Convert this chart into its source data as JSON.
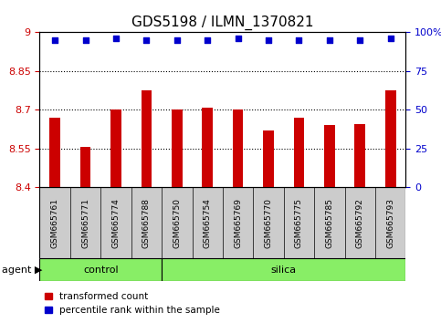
{
  "title": "GDS5198 / ILMN_1370821",
  "samples": [
    "GSM665761",
    "GSM665771",
    "GSM665774",
    "GSM665788",
    "GSM665750",
    "GSM665754",
    "GSM665769",
    "GSM665770",
    "GSM665775",
    "GSM665785",
    "GSM665792",
    "GSM665793"
  ],
  "transformed_count": [
    8.67,
    8.555,
    8.7,
    8.775,
    8.7,
    8.71,
    8.7,
    8.62,
    8.67,
    8.64,
    8.645,
    8.775
  ],
  "percentile_rank": [
    95,
    95,
    96,
    95,
    95,
    95,
    96,
    95,
    95,
    95,
    95,
    96
  ],
  "groups": [
    "control",
    "control",
    "control",
    "control",
    "silica",
    "silica",
    "silica",
    "silica",
    "silica",
    "silica",
    "silica",
    "silica"
  ],
  "ylim_left": [
    8.4,
    9.0
  ],
  "ylim_right": [
    0,
    100
  ],
  "yticks_left": [
    8.4,
    8.55,
    8.7,
    8.85,
    9.0
  ],
  "yticks_right": [
    0,
    25,
    50,
    75,
    100
  ],
  "ytick_labels_left": [
    "8.4",
    "8.55",
    "8.7",
    "8.85",
    "9"
  ],
  "ytick_labels_right": [
    "0",
    "25",
    "50",
    "75",
    "100%"
  ],
  "bar_color": "#cc0000",
  "dot_color": "#0000cc",
  "control_color": "#88ee66",
  "silica_color": "#88ee66",
  "bg_color": "#cccccc",
  "plot_bg": "#ffffff",
  "legend_red_label": "transformed count",
  "legend_blue_label": "percentile rank within the sample",
  "agent_label": "agent",
  "group_control": "control",
  "group_silica": "silica",
  "dotted_line_color": "#000000",
  "title_fontsize": 11,
  "tick_fontsize": 8,
  "sample_fontsize": 6.5,
  "group_fontsize": 8,
  "legend_fontsize": 7.5
}
